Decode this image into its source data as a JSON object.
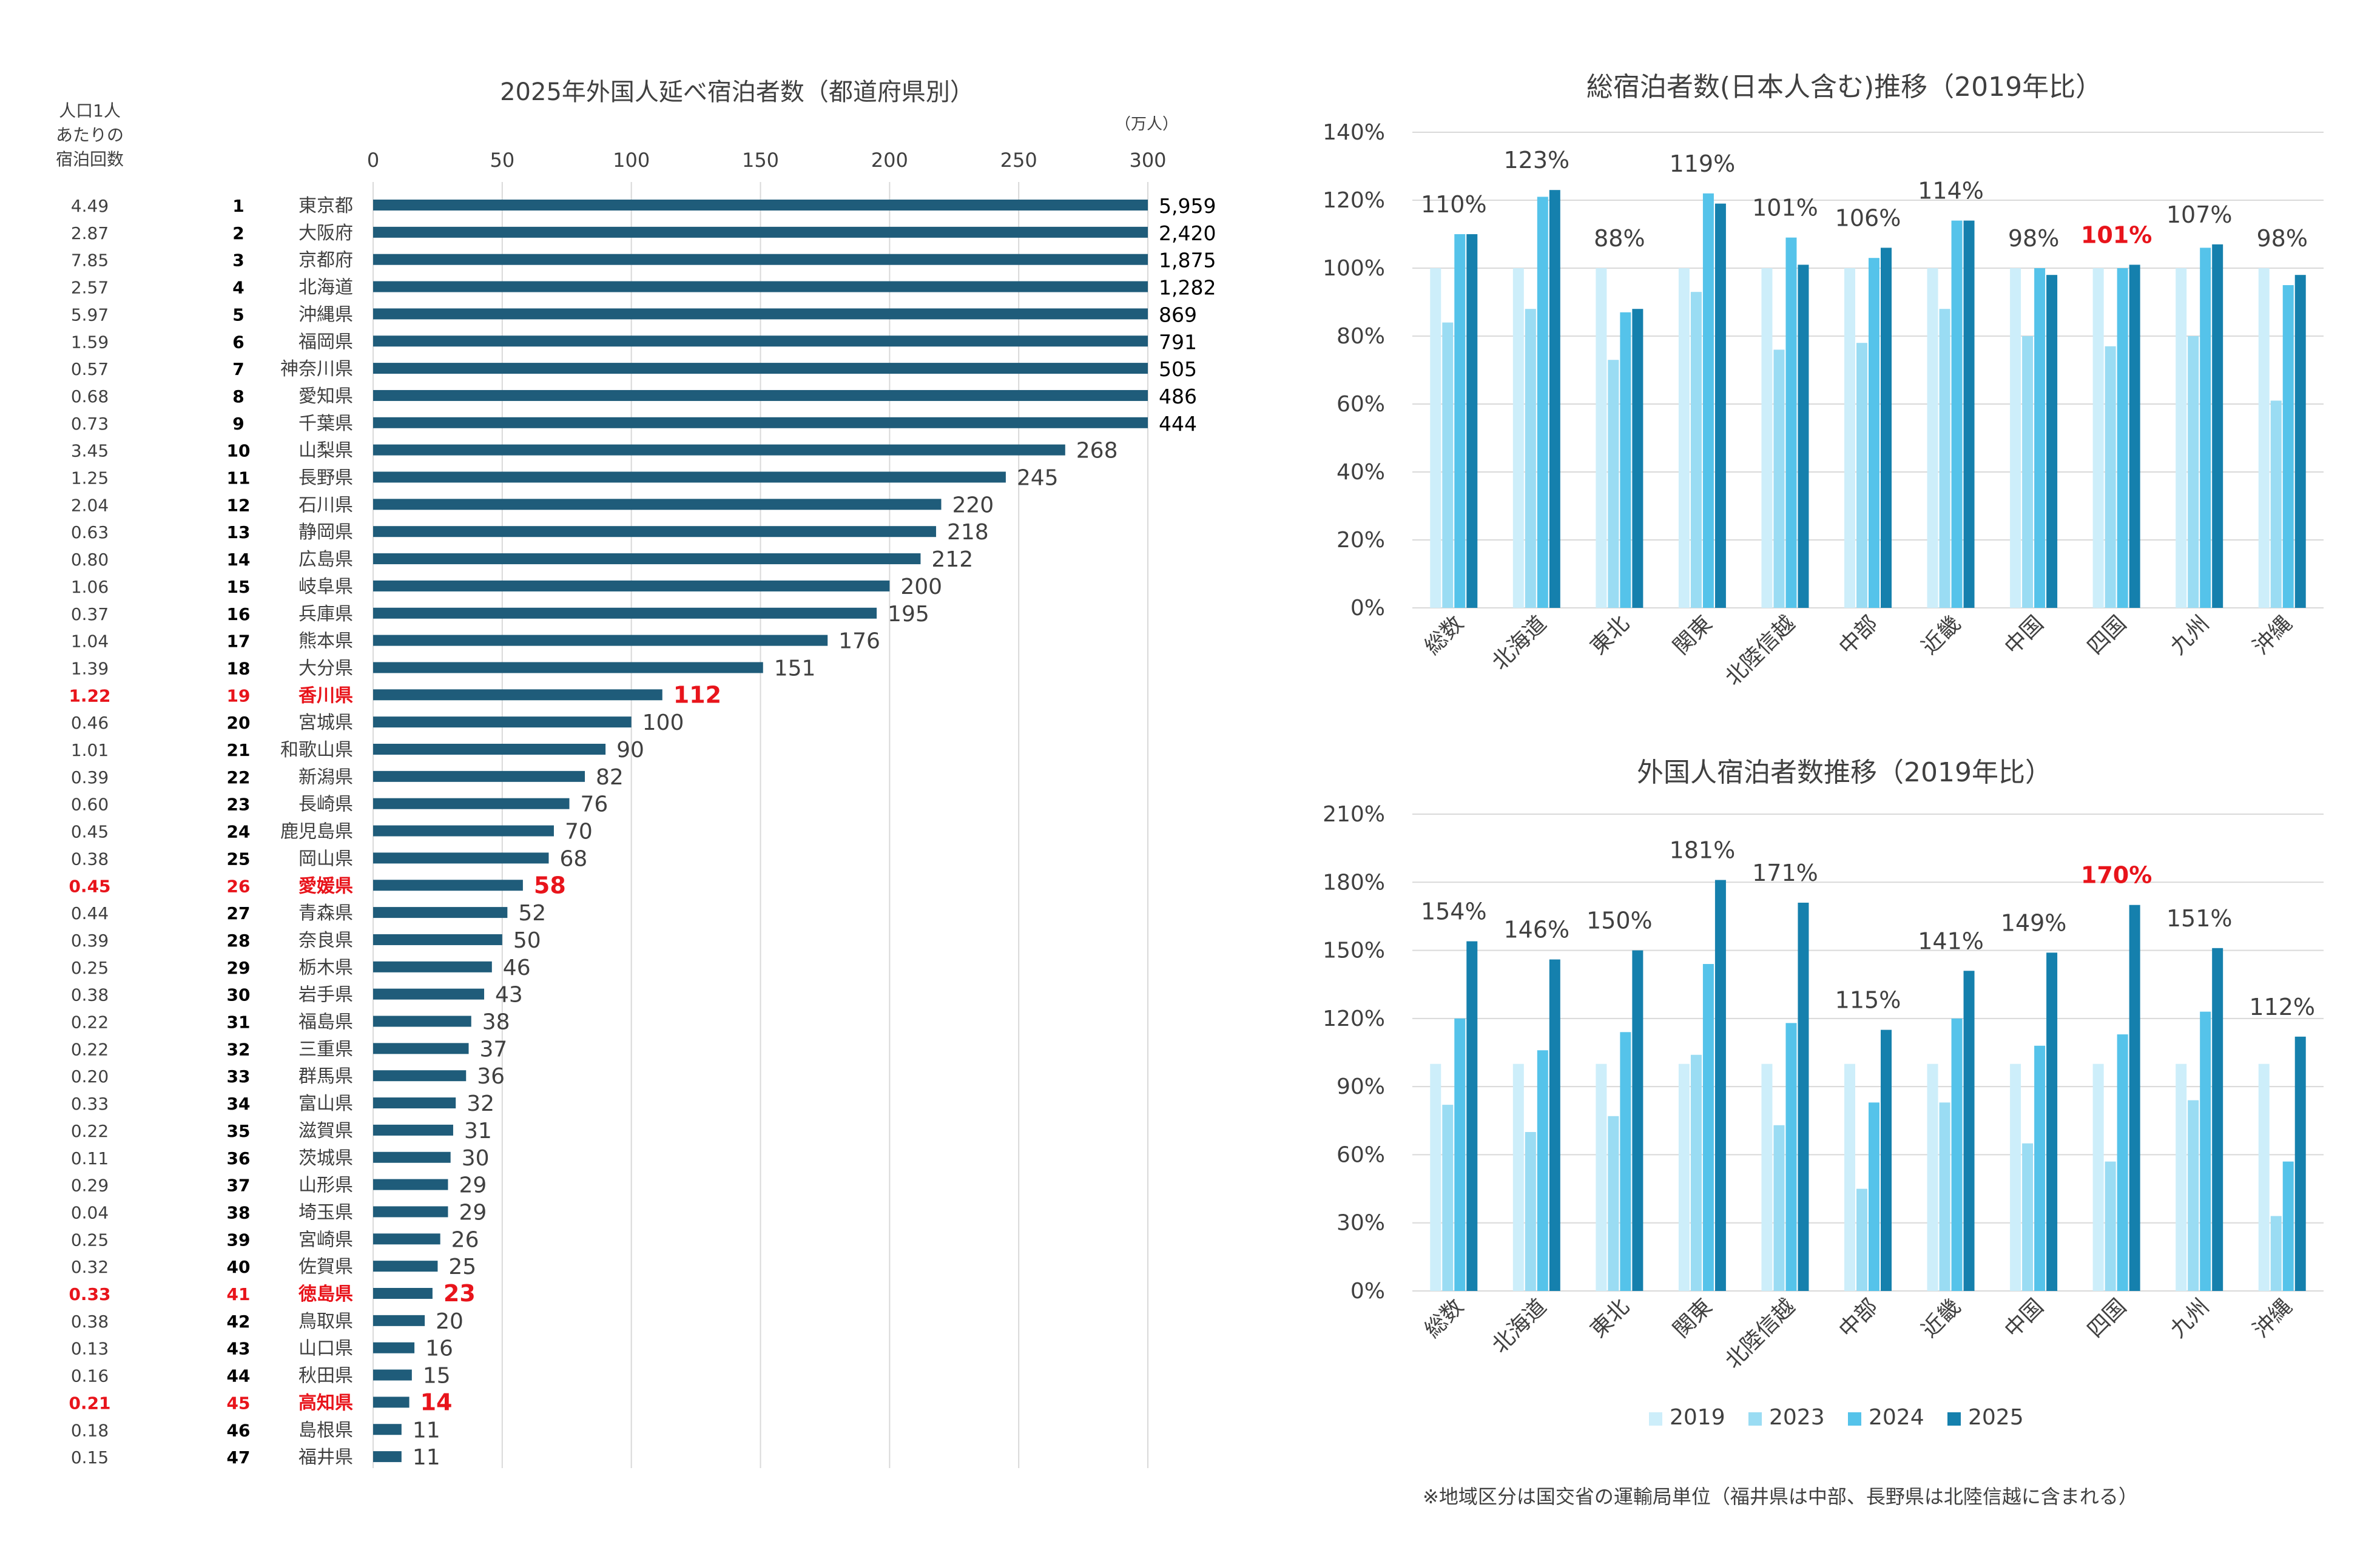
{
  "colors": {
    "bar_left": "#1f5c7a",
    "highlight": "#e8141b",
    "text": "#404040",
    "grid": "#d9d9d9",
    "s2019": "#cdeefa",
    "s2023": "#9adcf3",
    "s2024": "#55c3ea",
    "s2025": "#1580ad"
  },
  "footnote": "※地域区分は国交省の運輸局単位（福井県は中部、長野県は北陸信越に含まれる）",
  "legend": [
    "2019",
    "2023",
    "2024",
    "2025"
  ],
  "chart_data": [
    {
      "type": "bar",
      "orientation": "horizontal",
      "title": "2025年外国人延べ宿泊者数（都道府県別）",
      "unit_label": "（万人）",
      "per_capita_header": [
        "人口1人",
        "あたりの",
        "宿泊回数"
      ],
      "xlim": [
        0,
        300
      ],
      "xticks": [
        0,
        50,
        100,
        150,
        200,
        250,
        300
      ],
      "highlight_categories": [
        "香川県",
        "愛媛県",
        "徳島県",
        "高知県"
      ],
      "rows": [
        {
          "rank": "1",
          "name": "東京都",
          "value": 5959,
          "label": "5,959",
          "per_capita": "4.49"
        },
        {
          "rank": "2",
          "name": "大阪府",
          "value": 2420,
          "label": "2,420",
          "per_capita": "2.87"
        },
        {
          "rank": "3",
          "name": "京都府",
          "value": 1875,
          "label": "1,875",
          "per_capita": "7.85"
        },
        {
          "rank": "4",
          "name": "北海道",
          "value": 1282,
          "label": "1,282",
          "per_capita": "2.57"
        },
        {
          "rank": "5",
          "name": "沖縄県",
          "value": 869,
          "label": "869",
          "per_capita": "5.97"
        },
        {
          "rank": "6",
          "name": "福岡県",
          "value": 791,
          "label": "791",
          "per_capita": "1.59"
        },
        {
          "rank": "7",
          "name": "神奈川県",
          "value": 505,
          "label": "505",
          "per_capita": "0.57"
        },
        {
          "rank": "8",
          "name": "愛知県",
          "value": 486,
          "label": "486",
          "per_capita": "0.68"
        },
        {
          "rank": "9",
          "name": "千葉県",
          "value": 444,
          "label": "444",
          "per_capita": "0.73"
        },
        {
          "rank": "10",
          "name": "山梨県",
          "value": 268,
          "label": "268",
          "per_capita": "3.45"
        },
        {
          "rank": "11",
          "name": "長野県",
          "value": 245,
          "label": "245",
          "per_capita": "1.25"
        },
        {
          "rank": "12",
          "name": "石川県",
          "value": 220,
          "label": "220",
          "per_capita": "2.04"
        },
        {
          "rank": "13",
          "name": "静岡県",
          "value": 218,
          "label": "218",
          "per_capita": "0.63"
        },
        {
          "rank": "14",
          "name": "広島県",
          "value": 212,
          "label": "212",
          "per_capita": "0.80"
        },
        {
          "rank": "15",
          "name": "岐阜県",
          "value": 200,
          "label": "200",
          "per_capita": "1.06"
        },
        {
          "rank": "16",
          "name": "兵庫県",
          "value": 195,
          "label": "195",
          "per_capita": "0.37"
        },
        {
          "rank": "17",
          "name": "熊本県",
          "value": 176,
          "label": "176",
          "per_capita": "1.04"
        },
        {
          "rank": "18",
          "name": "大分県",
          "value": 151,
          "label": "151",
          "per_capita": "1.39"
        },
        {
          "rank": "19",
          "name": "香川県",
          "value": 112,
          "label": "112",
          "per_capita": "1.22"
        },
        {
          "rank": "20",
          "name": "宮城県",
          "value": 100,
          "label": "100",
          "per_capita": "0.46"
        },
        {
          "rank": "21",
          "name": "和歌山県",
          "value": 90,
          "label": "90",
          "per_capita": "1.01"
        },
        {
          "rank": "22",
          "name": "新潟県",
          "value": 82,
          "label": "82",
          "per_capita": "0.39"
        },
        {
          "rank": "23",
          "name": "長崎県",
          "value": 76,
          "label": "76",
          "per_capita": "0.60"
        },
        {
          "rank": "24",
          "name": "鹿児島県",
          "value": 70,
          "label": "70",
          "per_capita": "0.45"
        },
        {
          "rank": "25",
          "name": "岡山県",
          "value": 68,
          "label": "68",
          "per_capita": "0.38"
        },
        {
          "rank": "26",
          "name": "愛媛県",
          "value": 58,
          "label": "58",
          "per_capita": "0.45"
        },
        {
          "rank": "27",
          "name": "青森県",
          "value": 52,
          "label": "52",
          "per_capita": "0.44"
        },
        {
          "rank": "28",
          "name": "奈良県",
          "value": 50,
          "label": "50",
          "per_capita": "0.39"
        },
        {
          "rank": "29",
          "name": "栃木県",
          "value": 46,
          "label": "46",
          "per_capita": "0.25"
        },
        {
          "rank": "30",
          "name": "岩手県",
          "value": 43,
          "label": "43",
          "per_capita": "0.38"
        },
        {
          "rank": "31",
          "name": "福島県",
          "value": 38,
          "label": "38",
          "per_capita": "0.22"
        },
        {
          "rank": "32",
          "name": "三重県",
          "value": 37,
          "label": "37",
          "per_capita": "0.22"
        },
        {
          "rank": "33",
          "name": "群馬県",
          "value": 36,
          "label": "36",
          "per_capita": "0.20"
        },
        {
          "rank": "34",
          "name": "富山県",
          "value": 32,
          "label": "32",
          "per_capita": "0.33"
        },
        {
          "rank": "35",
          "name": "滋賀県",
          "value": 31,
          "label": "31",
          "per_capita": "0.22"
        },
        {
          "rank": "36",
          "name": "茨城県",
          "value": 30,
          "label": "30",
          "per_capita": "0.11"
        },
        {
          "rank": "37",
          "name": "山形県",
          "value": 29,
          "label": "29",
          "per_capita": "0.29"
        },
        {
          "rank": "38",
          "name": "埼玉県",
          "value": 29,
          "label": "29",
          "per_capita": "0.04"
        },
        {
          "rank": "39",
          "name": "宮崎県",
          "value": 26,
          "label": "26",
          "per_capita": "0.25"
        },
        {
          "rank": "40",
          "name": "佐賀県",
          "value": 25,
          "label": "25",
          "per_capita": "0.32"
        },
        {
          "rank": "41",
          "name": "徳島県",
          "value": 23,
          "label": "23",
          "per_capita": "0.33"
        },
        {
          "rank": "42",
          "name": "鳥取県",
          "value": 20,
          "label": "20",
          "per_capita": "0.38"
        },
        {
          "rank": "43",
          "name": "山口県",
          "value": 16,
          "label": "16",
          "per_capita": "0.13"
        },
        {
          "rank": "44",
          "name": "秋田県",
          "value": 15,
          "label": "15",
          "per_capita": "0.16"
        },
        {
          "rank": "45",
          "name": "高知県",
          "value": 14,
          "label": "14",
          "per_capita": "0.21"
        },
        {
          "rank": "46",
          "name": "島根県",
          "value": 11,
          "label": "11",
          "per_capita": "0.18"
        },
        {
          "rank": "47",
          "name": "福井県",
          "value": 11,
          "label": "11",
          "per_capita": "0.15"
        }
      ]
    },
    {
      "type": "bar",
      "title": "総宿泊者数(日本人含む)推移（2019年比）",
      "ylim": [
        0,
        140
      ],
      "yticks": [
        0,
        20,
        40,
        60,
        80,
        100,
        120,
        140
      ],
      "categories": [
        "総数",
        "北海道",
        "東北",
        "関東",
        "北陸信越",
        "中部",
        "近畿",
        "中国",
        "四国",
        "九州",
        "沖縄"
      ],
      "series": [
        {
          "name": "2019",
          "values": [
            100,
            100,
            100,
            100,
            100,
            100,
            100,
            100,
            100,
            100,
            100
          ]
        },
        {
          "name": "2023",
          "values": [
            84,
            88,
            73,
            93,
            76,
            78,
            88,
            80,
            77,
            80,
            61
          ]
        },
        {
          "name": "2024",
          "values": [
            110,
            121,
            87,
            122,
            109,
            103,
            114,
            100,
            100,
            106,
            95
          ]
        },
        {
          "name": "2025",
          "values": [
            110,
            123,
            88,
            119,
            101,
            106,
            114,
            98,
            101,
            107,
            98
          ]
        }
      ],
      "data_labels": [
        "110%",
        "123%",
        "88%",
        "119%",
        "101%",
        "106%",
        "114%",
        "98%",
        "101%",
        "107%",
        "98%"
      ],
      "highlight_categories": [
        "四国"
      ]
    },
    {
      "type": "bar",
      "title": "外国人宿泊者数推移（2019年比）",
      "ylim": [
        0,
        210
      ],
      "yticks": [
        0,
        30,
        60,
        90,
        120,
        150,
        180,
        210
      ],
      "categories": [
        "総数",
        "北海道",
        "東北",
        "関東",
        "北陸信越",
        "中部",
        "近畿",
        "中国",
        "四国",
        "九州",
        "沖縄"
      ],
      "series": [
        {
          "name": "2019",
          "values": [
            100,
            100,
            100,
            100,
            100,
            100,
            100,
            100,
            100,
            100,
            100
          ]
        },
        {
          "name": "2023",
          "values": [
            82,
            70,
            77,
            104,
            73,
            45,
            83,
            65,
            57,
            84,
            33
          ]
        },
        {
          "name": "2024",
          "values": [
            120,
            106,
            114,
            144,
            118,
            83,
            120,
            108,
            113,
            123,
            57
          ]
        },
        {
          "name": "2025",
          "values": [
            154,
            146,
            150,
            181,
            171,
            115,
            141,
            149,
            170,
            151,
            112
          ]
        }
      ],
      "data_labels": [
        "154%",
        "146%",
        "150%",
        "181%",
        "171%",
        "115%",
        "141%",
        "149%",
        "170%",
        "151%",
        "112%"
      ],
      "highlight_categories": [
        "四国"
      ]
    }
  ]
}
